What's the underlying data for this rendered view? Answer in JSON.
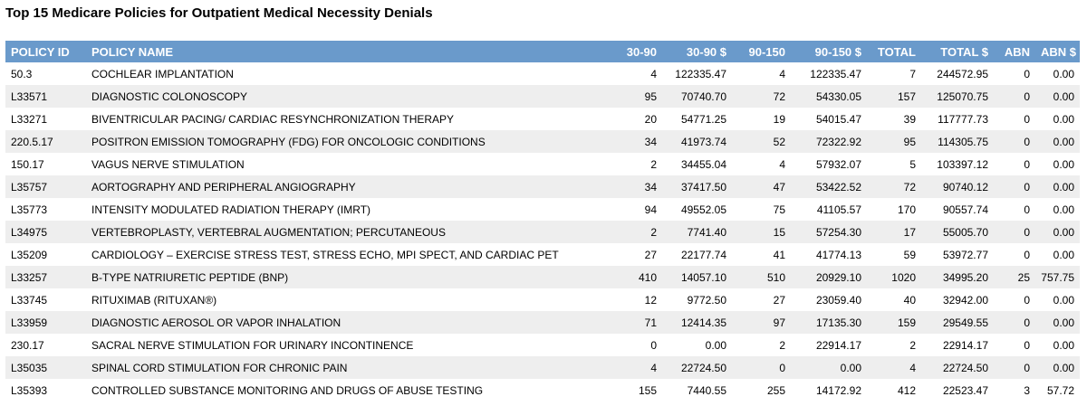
{
  "title": "Top 15 Medicare Policies for Outpatient Medical Necessity Denials",
  "columns": [
    "POLICY ID",
    "POLICY NAME",
    "30-90",
    "30-90 $",
    "90-150",
    "90-150 $",
    "TOTAL",
    "TOTAL $",
    "ABN",
    "ABN $"
  ],
  "rows": [
    [
      "50.3",
      "COCHLEAR IMPLANTATION",
      "4",
      "122335.47",
      "4",
      "122335.47",
      "7",
      "244572.95",
      "0",
      "0.00"
    ],
    [
      "L33571",
      "DIAGNOSTIC COLONOSCOPY",
      "95",
      "70740.70",
      "72",
      "54330.05",
      "157",
      "125070.75",
      "0",
      "0.00"
    ],
    [
      "L33271",
      "BIVENTRICULAR PACING/ CARDIAC RESYNCHRONIZATION THERAPY",
      "20",
      "54771.25",
      "19",
      "54015.47",
      "39",
      "117777.73",
      "0",
      "0.00"
    ],
    [
      "220.5.17",
      "POSITRON EMISSION TOMOGRAPHY (FDG) FOR ONCOLOGIC CONDITIONS",
      "34",
      "41973.74",
      "52",
      "72322.92",
      "95",
      "114305.75",
      "0",
      "0.00"
    ],
    [
      "150.17",
      "VAGUS NERVE STIMULATION",
      "2",
      "34455.04",
      "4",
      "57932.07",
      "5",
      "103397.12",
      "0",
      "0.00"
    ],
    [
      "L35757",
      "AORTOGRAPHY AND PERIPHERAL ANGIOGRAPHY",
      "34",
      "37417.50",
      "47",
      "53422.52",
      "72",
      "90740.12",
      "0",
      "0.00"
    ],
    [
      "L35773",
      "INTENSITY MODULATED RADIATION THERAPY (IMRT)",
      "94",
      "49552.05",
      "75",
      "41105.57",
      "170",
      "90557.74",
      "0",
      "0.00"
    ],
    [
      "L34975",
      "VERTEBROPLASTY, VERTEBRAL AUGMENTATION; PERCUTANEOUS",
      "2",
      "7741.40",
      "15",
      "57254.30",
      "17",
      "55005.70",
      "0",
      "0.00"
    ],
    [
      "L35209",
      "CARDIOLOGY – EXERCISE STRESS TEST, STRESS ECHO, MPI SPECT, AND CARDIAC PET",
      "27",
      "22177.74",
      "41",
      "41774.13",
      "59",
      "53972.77",
      "0",
      "0.00"
    ],
    [
      "L33257",
      "B-TYPE NATRIURETIC PEPTIDE (BNP)",
      "410",
      "14057.10",
      "510",
      "20929.10",
      "1020",
      "34995.20",
      "25",
      "757.75"
    ],
    [
      "L33745",
      "RITUXIMAB (RITUXAN®)",
      "12",
      "9772.50",
      "27",
      "23059.40",
      "40",
      "32942.00",
      "0",
      "0.00"
    ],
    [
      "L33959",
      "DIAGNOSTIC AEROSOL OR VAPOR INHALATION",
      "71",
      "12414.35",
      "97",
      "17135.30",
      "159",
      "29549.55",
      "0",
      "0.00"
    ],
    [
      "230.17",
      "SACRAL NERVE STIMULATION FOR URINARY INCONTINENCE",
      "0",
      "0.00",
      "2",
      "22914.17",
      "2",
      "22914.17",
      "0",
      "0.00"
    ],
    [
      "L35035",
      "SPINAL CORD STIMULATION FOR CHRONIC PAIN",
      "4",
      "22724.50",
      "0",
      "0.00",
      "4",
      "22724.50",
      "0",
      "0.00"
    ],
    [
      "L35393",
      "CONTROLLED SUBSTANCE MONITORING AND DRUGS OF ABUSE TESTING",
      "155",
      "7440.55",
      "255",
      "14172.92",
      "412",
      "22523.47",
      "3",
      "57.72"
    ]
  ]
}
